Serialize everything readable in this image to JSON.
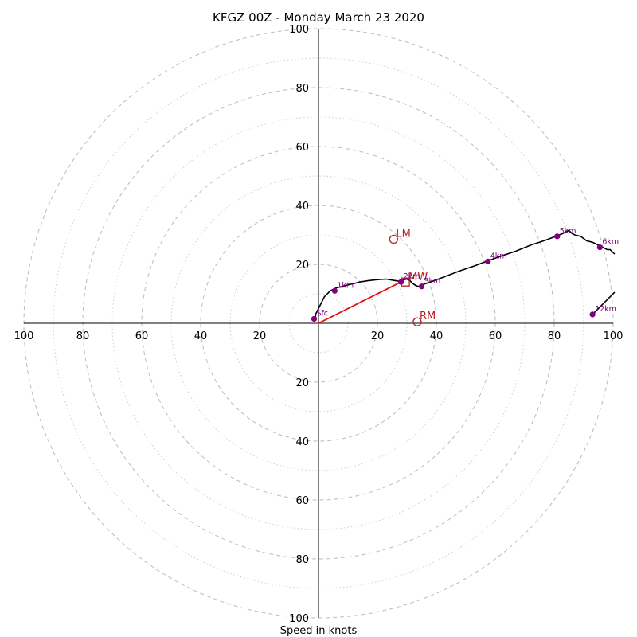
{
  "chart_data": {
    "type": "hodograph",
    "title": "KFGZ 00Z - Monday March 23 2020",
    "xlabel": "Speed in knots",
    "rlim": [
      0,
      100
    ],
    "major_rings": [
      20,
      40,
      60,
      80,
      100
    ],
    "minor_rings": [
      10,
      30,
      50,
      70,
      90
    ],
    "ring_line_style": "dashed",
    "grid": true,
    "axis_ticks": {
      "right": [
        "20",
        "40",
        "60",
        "80",
        "100"
      ],
      "left": [
        "100",
        "80",
        "60",
        "40",
        "20"
      ],
      "up": [
        "20",
        "40",
        "60",
        "80",
        "100"
      ],
      "down": [
        "20",
        "40",
        "60",
        "80",
        "100"
      ]
    },
    "hodograph_trace": [
      [
        -1,
        1
      ],
      [
        -1,
        3
      ],
      [
        0,
        5
      ],
      [
        1,
        7
      ],
      [
        2,
        9
      ],
      [
        4,
        11
      ],
      [
        6,
        12
      ],
      [
        8,
        12.5
      ],
      [
        10,
        13
      ],
      [
        12,
        13.5
      ],
      [
        14,
        14
      ],
      [
        17,
        14.5
      ],
      [
        20,
        14.8
      ],
      [
        23,
        15
      ],
      [
        26,
        14.5
      ],
      [
        28,
        14.2
      ],
      [
        29,
        14.8
      ],
      [
        30,
        15
      ],
      [
        31,
        14.5
      ],
      [
        32,
        13.5
      ],
      [
        33,
        12.8
      ],
      [
        34,
        12.5
      ],
      [
        35,
        13
      ],
      [
        38,
        14
      ],
      [
        42,
        15.5
      ],
      [
        48,
        17.8
      ],
      [
        53,
        19.5
      ],
      [
        57,
        21
      ],
      [
        62,
        22.8
      ],
      [
        67,
        24.5
      ],
      [
        72,
        26.5
      ],
      [
        77,
        28.2
      ],
      [
        81,
        29.7
      ],
      [
        83,
        30.5
      ],
      [
        85,
        31.5
      ],
      [
        86,
        30.5
      ],
      [
        87,
        30
      ],
      [
        89,
        29.5
      ],
      [
        91,
        28
      ],
      [
        93,
        27.5
      ],
      [
        95,
        26.5
      ],
      [
        96,
        26
      ],
      [
        97,
        25.5
      ],
      [
        98,
        25
      ],
      [
        99,
        25
      ],
      [
        100,
        24
      ],
      [
        100.5,
        23.5
      ]
    ],
    "upper_trace": [
      [
        93,
        3
      ],
      [
        95,
        5
      ],
      [
        97,
        7
      ],
      [
        99,
        9
      ],
      [
        100.5,
        10.5
      ]
    ],
    "height_markers": [
      {
        "label": "Sfc",
        "u": -1.5,
        "v": 1.5
      },
      {
        "label": "1km",
        "u": 5.5,
        "v": 11
      },
      {
        "label": "2km",
        "u": 28,
        "v": 14
      },
      {
        "label": "3km",
        "u": 35,
        "v": 12.5
      },
      {
        "label": "4km",
        "u": 57.5,
        "v": 21
      },
      {
        "label": "5km",
        "u": 81,
        "v": 29.5
      },
      {
        "label": "6km",
        "u": 95.5,
        "v": 25.8
      },
      {
        "label": "12km",
        "u": 93,
        "v": 3
      }
    ],
    "storm_motions": [
      {
        "label": "LM",
        "u": 25.5,
        "v": 28.5
      },
      {
        "label": "RM",
        "u": 33.5,
        "v": 0.5
      },
      {
        "label": "MW",
        "u": 29.5,
        "v": 14
      }
    ],
    "shear_vector": {
      "from": [
        0,
        0
      ],
      "to": [
        28,
        14
      ],
      "color": "#e01010"
    },
    "colors": {
      "trace": "#000000",
      "markers": "#800080",
      "storm_motion": "#b22222",
      "shear_vector": "#e01010",
      "grid": "#bbbbbb"
    }
  }
}
